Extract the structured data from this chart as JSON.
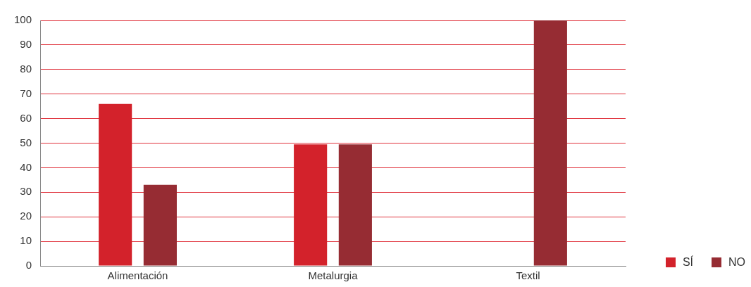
{
  "chart_data": {
    "type": "bar",
    "categories": [
      "Alimentación",
      "Metalurgia",
      "Textil"
    ],
    "series": [
      {
        "name": "SÍ",
        "color": "#d3222b",
        "values": [
          66,
          49.5,
          0
        ]
      },
      {
        "name": "NO",
        "color": "#962c33",
        "values": [
          33,
          49.5,
          100
        ]
      }
    ],
    "ylim": [
      0,
      100
    ],
    "yticks": [
      0,
      10,
      20,
      30,
      40,
      50,
      60,
      70,
      80,
      90,
      100
    ],
    "grid": "y",
    "legend": "bottom right"
  }
}
